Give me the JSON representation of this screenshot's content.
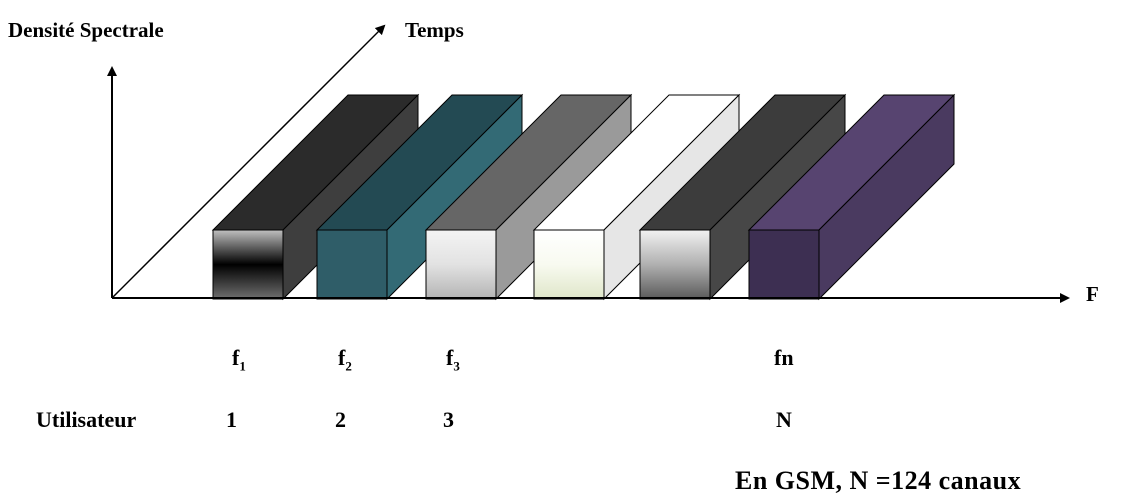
{
  "axes": {
    "y_label": "Densité Spectrale",
    "diagonal_label": "Temps",
    "x_label": "F"
  },
  "frequencies": [
    {
      "base": "f",
      "sub": "1"
    },
    {
      "base": "f",
      "sub": "2"
    },
    {
      "base": "f",
      "sub": "3"
    },
    {
      "base": "fn",
      "sub": ""
    }
  ],
  "users": {
    "heading": "Utilisateur",
    "values": [
      "1",
      "2",
      "3",
      "N"
    ]
  },
  "footnote": "En GSM, N =124 canaux",
  "channels": [
    {
      "front_top": "#c0c0c0",
      "front_mid": "#000000",
      "front_bottom": "#707070",
      "top": "#2b2b2b",
      "side": "#3e3e3e"
    },
    {
      "front_top": "#2f5d68",
      "front_mid": "#2f5d68",
      "front_bottom": "#2f5d68",
      "top": "#234a53",
      "side": "#336a75"
    },
    {
      "front_top": "#f4f4f4",
      "front_mid": "#e2e2e2",
      "front_bottom": "#b4b4b4",
      "top": "#666666",
      "side": "#9a9a9a"
    },
    {
      "front_top": "#ffffff",
      "front_mid": "#f8faf0",
      "front_bottom": "#dfe6c9",
      "top": "#ffffff",
      "side": "#e6e6e6"
    },
    {
      "front_top": "#f2f2f2",
      "front_mid": "#b0b0b0",
      "front_bottom": "#5a5a5a",
      "top": "#3c3c3c",
      "side": "#474747"
    },
    {
      "front_top": "#3d2f52",
      "front_mid": "#3d2f52",
      "front_bottom": "#3d2f52",
      "top": "#574470",
      "side": "#4a3a60"
    }
  ]
}
